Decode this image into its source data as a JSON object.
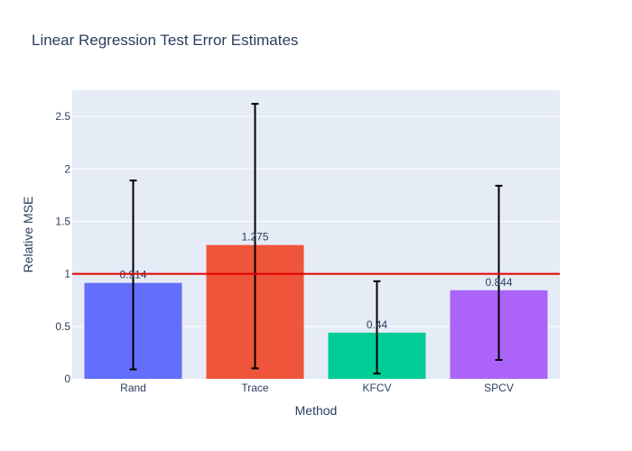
{
  "chart_data": {
    "type": "bar",
    "title": "Linear Regression Test Error Estimates",
    "xlabel": "Method",
    "ylabel": "Relative MSE",
    "categories": [
      "Rand",
      "Trace",
      "KFCV",
      "SPCV"
    ],
    "values": [
      0.914,
      1.275,
      0.44,
      0.844
    ],
    "value_labels": [
      "0.914",
      "1.275",
      "0.44",
      "0.844"
    ],
    "error_low": [
      0.09,
      0.1,
      0.05,
      0.18
    ],
    "error_high": [
      1.89,
      2.62,
      0.93,
      1.84
    ],
    "colors": [
      "#636efa",
      "#ef553b",
      "#00cc96",
      "#ab63fa"
    ],
    "ylim": [
      0,
      2.75
    ],
    "yticks": [
      0,
      0.5,
      1,
      1.5,
      2,
      2.5
    ],
    "ytick_labels": [
      "0",
      "0.5",
      "1",
      "1.5",
      "2",
      "2.5"
    ],
    "reference_line": {
      "y": 1,
      "color": "#e00000"
    },
    "grid": true,
    "background": "#e5ecf6"
  }
}
